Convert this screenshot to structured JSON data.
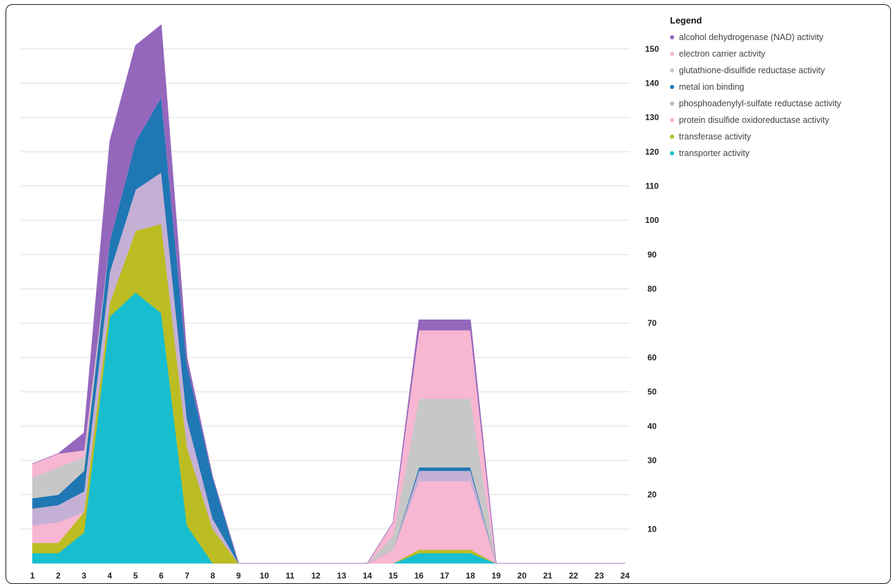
{
  "chart_data": {
    "type": "area",
    "stacked": true,
    "title": "",
    "xlabel": "",
    "ylabel": "",
    "x": [
      1,
      2,
      3,
      4,
      5,
      6,
      7,
      8,
      9,
      10,
      11,
      12,
      13,
      14,
      15,
      16,
      17,
      18,
      19,
      20,
      21,
      22,
      23,
      24
    ],
    "ylim": [
      0,
      157
    ],
    "yticks": [
      10,
      20,
      30,
      40,
      50,
      60,
      70,
      80,
      90,
      100,
      110,
      120,
      130,
      140,
      150
    ],
    "y_axis_position": "right",
    "grid": true,
    "legend_title": "Legend",
    "legend_position": "top-right",
    "series": [
      {
        "name": "transporter activity",
        "color": "#17becf",
        "values": [
          3,
          3,
          9,
          72,
          79,
          73,
          11,
          0,
          0,
          0,
          0,
          0,
          0,
          0,
          0,
          3,
          3,
          3,
          0,
          0,
          0,
          0,
          0,
          0
        ]
      },
      {
        "name": "transferase activity",
        "color": "#bcbd22",
        "values": [
          3,
          3,
          6,
          4,
          18,
          26,
          23,
          10,
          0,
          0,
          0,
          0,
          0,
          0,
          0,
          1,
          1,
          1,
          0,
          0,
          0,
          0,
          0,
          0
        ]
      },
      {
        "name": "protein disulfide oxidoreductase activity",
        "color": "#f7b6d2",
        "values": [
          5,
          6,
          0,
          0,
          0,
          0,
          0,
          0,
          0,
          0,
          0,
          0,
          0,
          0,
          4,
          20,
          20,
          20,
          0,
          0,
          0,
          0,
          0,
          0
        ]
      },
      {
        "name": "phosphoadenylyl-sulfate reductase activity",
        "color": "#c5b0d5",
        "values": [
          5,
          5,
          6,
          9,
          12,
          15,
          8,
          3,
          0,
          0,
          0,
          0,
          0,
          0,
          0,
          3,
          3,
          3,
          0,
          0,
          0,
          0,
          0,
          0
        ]
      },
      {
        "name": "metal ion binding",
        "color": "#1f77b4",
        "values": [
          3,
          3,
          6,
          9,
          14,
          22,
          16,
          12,
          0,
          0,
          0,
          0,
          0,
          0,
          0,
          1,
          1,
          1,
          0,
          0,
          0,
          0,
          0,
          0
        ]
      },
      {
        "name": "glutathione-disulfide reductase activity",
        "color": "#c7c7c7",
        "values": [
          6,
          8,
          4,
          0,
          0,
          0,
          0,
          0,
          0,
          0,
          0,
          0,
          0,
          0,
          4,
          20,
          20,
          20,
          0,
          0,
          0,
          0,
          0,
          0
        ]
      },
      {
        "name": "electron carrier activity",
        "color": "#f7b6d2",
        "values": [
          4,
          4,
          2,
          0,
          0,
          0,
          0,
          0,
          0,
          0,
          0,
          0,
          0,
          0,
          4,
          20,
          20,
          20,
          0,
          0,
          0,
          0,
          0,
          0
        ]
      },
      {
        "name": "alcohol dehydrogenase (NAD) activity",
        "color": "#9467bd",
        "values": [
          0,
          0,
          5,
          29,
          28,
          21,
          2,
          0,
          0,
          0,
          0,
          0,
          0,
          0,
          0,
          3,
          3,
          3,
          0,
          0,
          0,
          0,
          0,
          0
        ]
      }
    ],
    "legend_order": [
      {
        "name": "alcohol dehydrogenase (NAD) activity",
        "color": "#9467bd"
      },
      {
        "name": "electron carrier activity",
        "color": "#f7b6d2"
      },
      {
        "name": "glutathione-disulfide reductase activity",
        "color": "#c7c7c7"
      },
      {
        "name": "metal ion binding",
        "color": "#1f77b4"
      },
      {
        "name": "phosphoadenylyl-sulfate reductase activity",
        "color": "#c5b0d5"
      },
      {
        "name": "protein disulfide oxidoreductase activity",
        "color": "#f7b6d2"
      },
      {
        "name": "transferase activity",
        "color": "#bcbd22"
      },
      {
        "name": "transporter activity",
        "color": "#17becf"
      }
    ]
  }
}
